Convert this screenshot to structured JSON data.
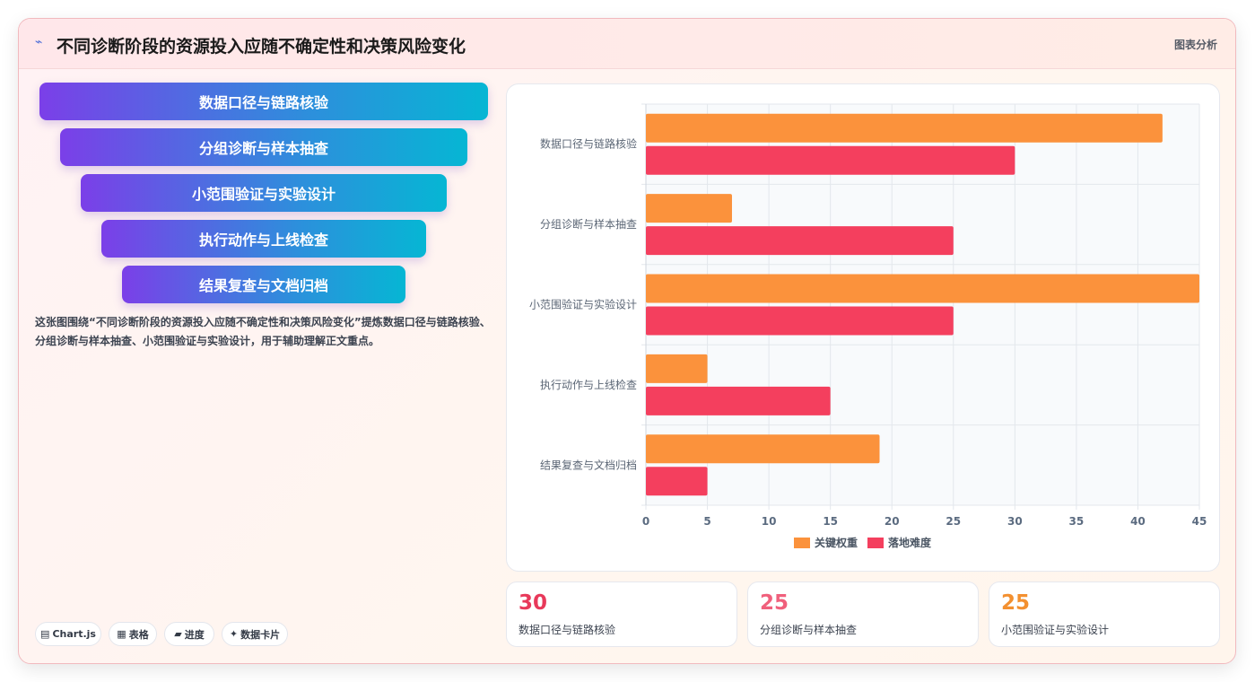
{
  "header": {
    "icon": "activity-icon",
    "title": "不同诊断阶段的资源投入应随不确定性和决策风险变化",
    "tag": "图表分析"
  },
  "funnel": {
    "steps": [
      "数据口径与链路核验",
      "分组诊断与样本抽查",
      "小范围验证与实验设计",
      "执行动作与上线检查",
      "结果复查与文档归档"
    ],
    "gradient": [
      "#7b3fe8",
      "#06b6d4"
    ]
  },
  "description": "这张图围绕“不同诊断阶段的资源投入应随不确定性和决策风险变化”提炼数据口径与链路核验、分组诊断与样本抽查、小范围验证与实验设计，用于辅助理解正文重点。",
  "pills": [
    {
      "icon": "chart-icon",
      "label": "Chart.js"
    },
    {
      "icon": "table-icon",
      "label": "表格"
    },
    {
      "icon": "progress-icon",
      "label": "进度"
    },
    {
      "icon": "sparkle-icon",
      "label": "数据卡片"
    }
  ],
  "chart_data": {
    "type": "bar",
    "orientation": "horizontal",
    "categories": [
      "数据口径与链路核验",
      "分组诊断与样本抽查",
      "小范围验证与实验设计",
      "执行动作与上线检查",
      "结果复查与文档归档"
    ],
    "series": [
      {
        "name": "关键权重",
        "color": "#fb923c",
        "values": [
          42,
          7,
          45,
          5,
          19
        ]
      },
      {
        "name": "落地难度",
        "color": "#f43f5e",
        "values": [
          30,
          25,
          25,
          15,
          5
        ]
      }
    ],
    "xlim": [
      0,
      45
    ],
    "xticks": [
      0,
      5,
      10,
      15,
      20,
      25,
      30,
      35,
      40,
      45
    ],
    "grid": true,
    "legend": "bottom"
  },
  "stats": [
    {
      "value": "30",
      "label": "数据口径与链路核验",
      "color": "#e8395a"
    },
    {
      "value": "25",
      "label": "分组诊断与样本抽查",
      "color": "#f0607c"
    },
    {
      "value": "25",
      "label": "小范围验证与实验设计",
      "color": "#f39030"
    }
  ]
}
